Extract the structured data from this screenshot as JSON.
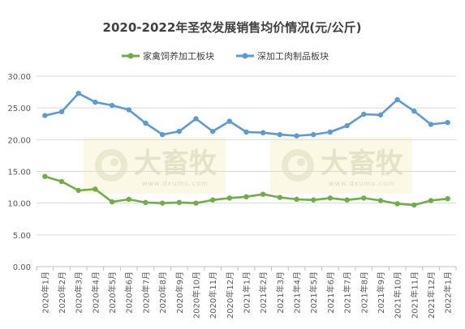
{
  "chart_data": {
    "type": "line",
    "title": "2020-2022年圣农发展销售均价情况(元/公斤)",
    "xlabel": "",
    "ylabel": "",
    "ylim": [
      0,
      30
    ],
    "yticks": [
      "0.00",
      "5.00",
      "10.00",
      "15.00",
      "20.00",
      "25.00",
      "30.00"
    ],
    "grid": true,
    "legend_position": "top",
    "categories": [
      "2020年1月",
      "2020年2月",
      "2020年3月",
      "2020年4月",
      "2020年5月",
      "2020年6月",
      "2020年7月",
      "2020年8月",
      "2020年9月",
      "2020年10月",
      "2020年11月",
      "2020年12月",
      "2021年1月",
      "2021年2月",
      "2021年3月",
      "2021年4月",
      "2021年5月",
      "2021年6月",
      "2021年7月",
      "2021年8月",
      "2021年9月",
      "2021年10月",
      "2021年11月",
      "2021年12月",
      "2022年1月"
    ],
    "series": [
      {
        "name": "家禽饲养加工板块",
        "color": "#70ad47",
        "values": [
          14.2,
          13.4,
          12.0,
          12.2,
          10.2,
          10.6,
          10.1,
          10.0,
          10.1,
          10.0,
          10.5,
          10.8,
          11.0,
          11.4,
          10.9,
          10.6,
          10.5,
          10.8,
          10.5,
          10.8,
          10.4,
          9.9,
          9.7,
          10.4,
          10.7
        ]
      },
      {
        "name": "深加工肉制品板块",
        "color": "#5b9bd5",
        "values": [
          23.8,
          24.4,
          27.3,
          25.9,
          25.4,
          24.7,
          22.6,
          20.8,
          21.3,
          23.3,
          21.3,
          22.9,
          21.2,
          21.1,
          20.8,
          20.6,
          20.8,
          21.2,
          22.2,
          24.0,
          23.9,
          26.3,
          24.5,
          22.4,
          22.7
        ]
      }
    ]
  },
  "watermark": {
    "brand": "大畜牧",
    "site": "www.dxumu.com",
    "color": "#ece8cf"
  }
}
